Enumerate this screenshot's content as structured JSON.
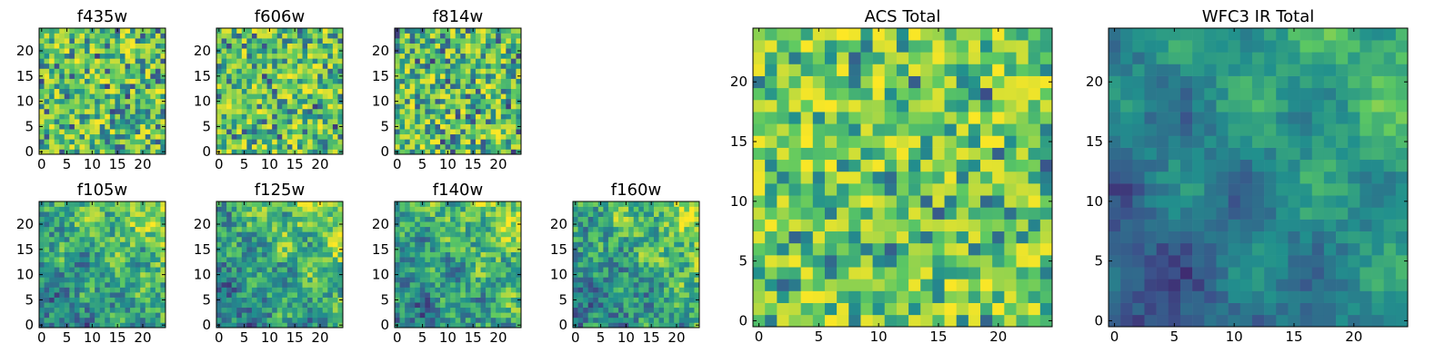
{
  "figure": {
    "colormap": "viridis",
    "colors": [
      "#440154",
      "#3b528b",
      "#21908d",
      "#5dc962",
      "#fde725"
    ]
  },
  "chart_data": [
    {
      "type": "heatmap",
      "title": "f435w",
      "grid_size": 25,
      "xlim": [
        -0.5,
        24.5
      ],
      "ylim": [
        -0.5,
        24.5
      ],
      "xticks": [
        0,
        5,
        10,
        15,
        20
      ],
      "yticks": [
        0,
        5,
        10,
        15,
        20
      ],
      "tick_labels": [
        "0",
        "5",
        "10",
        "15",
        "20"
      ]
    },
    {
      "type": "heatmap",
      "title": "f606w",
      "grid_size": 25,
      "xlim": [
        -0.5,
        24.5
      ],
      "ylim": [
        -0.5,
        24.5
      ],
      "xticks": [
        0,
        5,
        10,
        15,
        20
      ],
      "yticks": [
        0,
        5,
        10,
        15,
        20
      ],
      "tick_labels": [
        "0",
        "5",
        "10",
        "15",
        "20"
      ]
    },
    {
      "type": "heatmap",
      "title": "f814w",
      "grid_size": 25,
      "xlim": [
        -0.5,
        24.5
      ],
      "ylim": [
        -0.5,
        24.5
      ],
      "xticks": [
        0,
        5,
        10,
        15,
        20
      ],
      "yticks": [
        0,
        5,
        10,
        15,
        20
      ],
      "tick_labels": [
        "0",
        "5",
        "10",
        "15",
        "20"
      ]
    },
    {
      "type": "heatmap",
      "title": "f105w",
      "grid_size": 25,
      "xlim": [
        -0.5,
        24.5
      ],
      "ylim": [
        -0.5,
        24.5
      ],
      "xticks": [
        0,
        5,
        10,
        15,
        20
      ],
      "yticks": [
        0,
        5,
        10,
        15,
        20
      ],
      "tick_labels": [
        "0",
        "5",
        "10",
        "15",
        "20"
      ]
    },
    {
      "type": "heatmap",
      "title": "f125w",
      "grid_size": 25,
      "xlim": [
        -0.5,
        24.5
      ],
      "ylim": [
        -0.5,
        24.5
      ],
      "xticks": [
        0,
        5,
        10,
        15,
        20
      ],
      "yticks": [
        0,
        5,
        10,
        15,
        20
      ],
      "tick_labels": [
        "0",
        "5",
        "10",
        "15",
        "20"
      ]
    },
    {
      "type": "heatmap",
      "title": "f140w",
      "grid_size": 25,
      "xlim": [
        -0.5,
        24.5
      ],
      "ylim": [
        -0.5,
        24.5
      ],
      "xticks": [
        0,
        5,
        10,
        15,
        20
      ],
      "yticks": [
        0,
        5,
        10,
        15,
        20
      ],
      "tick_labels": [
        "0",
        "5",
        "10",
        "15",
        "20"
      ]
    },
    {
      "type": "heatmap",
      "title": "f160w",
      "grid_size": 25,
      "xlim": [
        -0.5,
        24.5
      ],
      "ylim": [
        -0.5,
        24.5
      ],
      "xticks": [
        0,
        5,
        10,
        15,
        20
      ],
      "yticks": [
        0,
        5,
        10,
        15,
        20
      ],
      "tick_labels": [
        "0",
        "5",
        "10",
        "15",
        "20"
      ]
    },
    {
      "type": "heatmap",
      "title": "ACS Total",
      "grid_size": 25,
      "xlim": [
        -0.5,
        24.5
      ],
      "ylim": [
        -0.5,
        24.5
      ],
      "xticks": [
        0,
        5,
        10,
        15,
        20
      ],
      "yticks": [
        0,
        5,
        10,
        15,
        20
      ],
      "tick_labels": [
        "0",
        "5",
        "10",
        "15",
        "20"
      ]
    },
    {
      "type": "heatmap",
      "title": "WFC3 IR Total",
      "grid_size": 25,
      "xlim": [
        -0.5,
        24.5
      ],
      "ylim": [
        -0.5,
        24.5
      ],
      "xticks": [
        0,
        5,
        10,
        15,
        20
      ],
      "yticks": [
        0,
        5,
        10,
        15,
        20
      ],
      "tick_labels": [
        "0",
        "5",
        "10",
        "15",
        "20"
      ]
    }
  ]
}
